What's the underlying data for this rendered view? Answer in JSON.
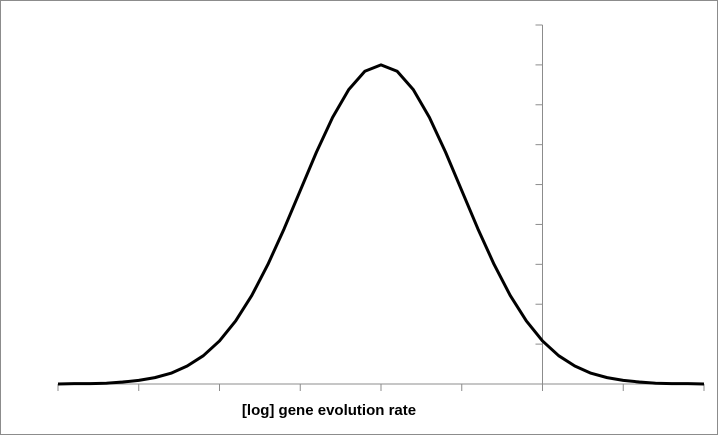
{
  "chart_data": {
    "type": "line",
    "x_label": "[log] gene evolution rate",
    "x": [
      -4,
      -3.8,
      -3.6,
      -3.4,
      -3.2,
      -3,
      -2.8,
      -2.6,
      -2.4,
      -2.2,
      -2,
      -1.8,
      -1.6,
      -1.4,
      -1.2,
      -1,
      -0.8,
      -0.6,
      -0.4,
      -0.2,
      0,
      0.2,
      0.4,
      0.6,
      0.8,
      1,
      1.2,
      1.4,
      1.6,
      1.8,
      2,
      2.2,
      2.4,
      2.6,
      2.8,
      3,
      3.2,
      3.4,
      3.6,
      3.8,
      4
    ],
    "series": [
      {
        "color": "#000000",
        "values": [
          0,
          0.01,
          0.01,
          0.02,
          0.05,
          0.09,
          0.16,
          0.27,
          0.45,
          0.71,
          1.08,
          1.58,
          2.22,
          3.0,
          3.89,
          4.85,
          5.81,
          6.68,
          7.38,
          7.84,
          8,
          7.84,
          7.38,
          6.68,
          5.81,
          4.85,
          3.89,
          3.0,
          2.22,
          1.58,
          1.08,
          0.71,
          0.45,
          0.27,
          0.16,
          0.09,
          0.05,
          0.02,
          0.01,
          0.01,
          0
        ]
      }
    ],
    "xlim": [
      -4,
      4
    ],
    "xticks": [
      -4,
      -3,
      -2,
      -1,
      0,
      1,
      2,
      3,
      4
    ],
    "ylim": [
      0,
      9
    ],
    "yticks": [
      0,
      1,
      2,
      3,
      4,
      5,
      6,
      7,
      8,
      9
    ],
    "y_axis_crossing": 2,
    "grid": false
  }
}
